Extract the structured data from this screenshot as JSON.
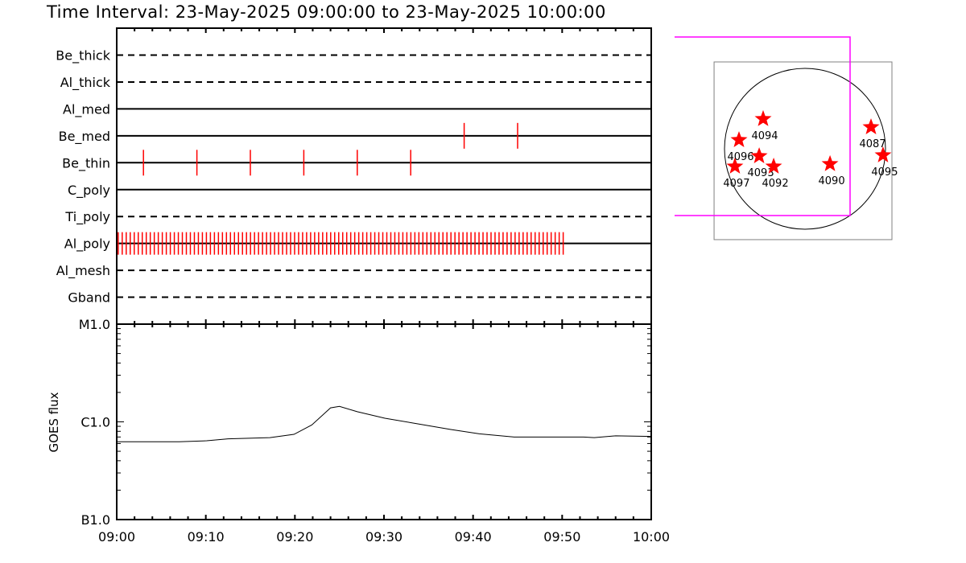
{
  "title": "Time Interval: 23-May-2025 09:00:00 to 23-May-2025 10:00:00",
  "colors": {
    "axis": "#000000",
    "marks": "#ff0000",
    "fov": "#ff00ff",
    "map_box": "#808080"
  },
  "chart_data": [
    {
      "type": "timeline",
      "x_range": [
        "09:00",
        "10:00"
      ],
      "rows": [
        {
          "name": "Be_thick",
          "style": "dashed",
          "times": []
        },
        {
          "name": "Al_thick",
          "style": "dashed",
          "times": []
        },
        {
          "name": "Al_med",
          "style": "solid",
          "times": []
        },
        {
          "name": "Be_med",
          "style": "solid",
          "times": [
            "09:39",
            "09:45"
          ]
        },
        {
          "name": "Be_thin",
          "style": "solid",
          "times": [
            "09:03",
            "09:09",
            "09:15",
            "09:21",
            "09:27",
            "09:33"
          ]
        },
        {
          "name": "C_poly",
          "style": "solid",
          "times": []
        },
        {
          "name": "Ti_poly",
          "style": "dashed",
          "times": []
        },
        {
          "name": "Al_poly",
          "style": "solid",
          "times_range": {
            "start": "09:00:10",
            "end": "09:50:30",
            "cadence_s": 27
          }
        },
        {
          "name": "Al_mesh",
          "style": "dashed",
          "times": []
        },
        {
          "name": "Gband",
          "style": "dashed",
          "times": []
        }
      ]
    },
    {
      "type": "line",
      "ylabel": "GOES flux",
      "yscale": "log",
      "ylim": [
        1e-07,
        1e-05
      ],
      "yticks": [
        {
          "value": 1e-05,
          "label": "M1.0"
        },
        {
          "value": 1e-06,
          "label": "C1.0"
        },
        {
          "value": 1e-07,
          "label": "B1.0"
        }
      ],
      "xticks": [
        "09:00",
        "09:10",
        "09:20",
        "09:30",
        "09:40",
        "09:50",
        "10:00"
      ],
      "x_minutes": [
        0,
        4.6,
        7.0,
        10.1,
        12.5,
        17.2,
        19.9,
        21.9,
        24.0,
        25.0,
        27.0,
        30.1,
        33.6,
        37.5,
        40.7,
        44.6,
        52.4,
        53.6,
        56.0,
        60
      ],
      "y": [
        6.25e-07,
        6.25e-07,
        6.25e-07,
        6.4e-07,
        6.7e-07,
        6.9e-07,
        7.45e-07,
        9.3e-07,
        1.39e-06,
        1.44e-06,
        1.27e-06,
        1.09e-06,
        9.6e-07,
        8.35e-07,
        7.55e-07,
        7e-07,
        7e-07,
        6.9e-07,
        7.2e-07,
        7.1e-07
      ]
    },
    {
      "type": "scatter",
      "units": "arcsec",
      "solar_radius": 950,
      "map_box": {
        "x": [
          -1073,
          1026
        ],
        "y": [
          -1073,
          1026
        ]
      },
      "fov_box": {
        "x": [
          -1539,
          532
        ],
        "y": [
          -789,
          1320
        ]
      },
      "points": [
        {
          "label": "4094",
          "x": -494,
          "y": 352
        },
        {
          "label": "4096",
          "x": -779,
          "y": 104
        },
        {
          "label": "4093",
          "x": -541,
          "y": -86
        },
        {
          "label": "4097",
          "x": -827,
          "y": -209
        },
        {
          "label": "4092",
          "x": -370,
          "y": -209
        },
        {
          "label": "4090",
          "x": 295,
          "y": -180
        },
        {
          "label": "4087",
          "x": 779,
          "y": 256
        },
        {
          "label": "4095",
          "x": 921,
          "y": -76
        }
      ]
    }
  ]
}
